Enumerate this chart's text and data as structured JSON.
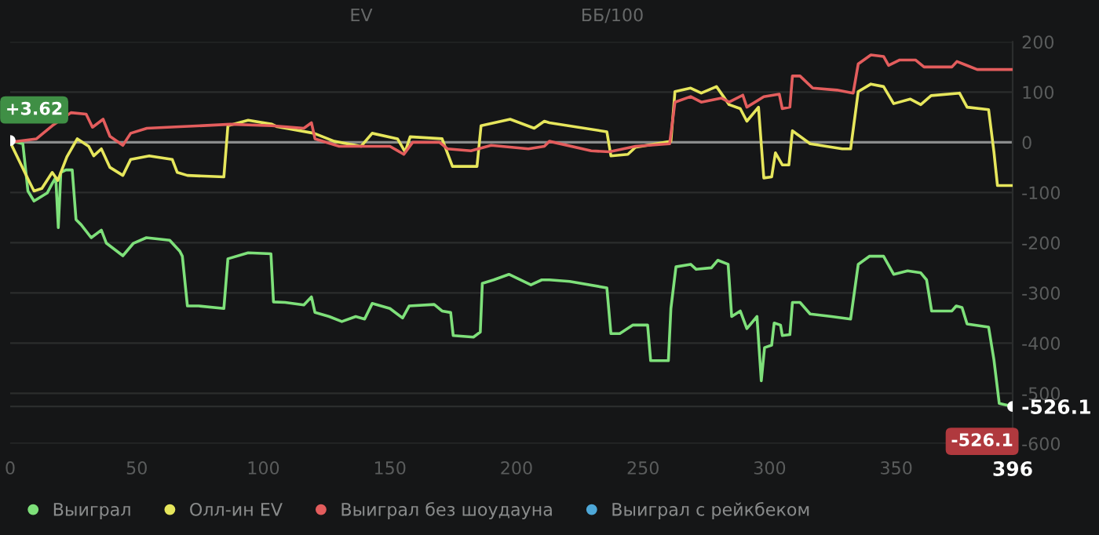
{
  "chart_data": {
    "type": "line",
    "annotations": [
      "EV",
      "ББ/100",
      {
        "text": "+3.62",
        "x": 0,
        "y": 3.62
      },
      {
        "text": "-526.1",
        "x": 396,
        "y": -526.1
      }
    ],
    "xlim": [
      0,
      396
    ],
    "xticks": [
      0,
      50,
      100,
      150,
      200,
      250,
      300,
      350,
      {
        "value": 396,
        "label": "396"
      }
    ],
    "ylim": [
      -600,
      200
    ],
    "yticks": [
      -600,
      -500,
      -400,
      -300,
      -200,
      -100,
      0,
      100,
      200,
      {
        "value": -526.1,
        "label": "-526.1"
      }
    ],
    "grid": "y",
    "legend": "bottom left",
    "marker": "none",
    "line_style": "solid",
    "ref_lines": [
      {
        "axis": "y",
        "value": 0,
        "color": "#8a8c8c"
      }
    ],
    "series": [
      {
        "name": "Выиграл",
        "color": "#7ee07a",
        "x": [
          0,
          5,
          7,
          9.4,
          14.6,
          16.6,
          18,
          19,
          20,
          22,
          24.5,
          26,
          28,
          32,
          36,
          38,
          44.5,
          48.7,
          53.8,
          63,
          67,
          68,
          70,
          74.5,
          84.4,
          86,
          94,
          103,
          104,
          108.6,
          116,
          119,
          120.4,
          126,
          131,
          136.5,
          140,
          143,
          150,
          155,
          157.6,
          167.5,
          170.6,
          174,
          175,
          183,
          185.7,
          186.5,
          191,
          197,
          205.7,
          210,
          213,
          221,
          235.7,
          237.3,
          240.8,
          246,
          251.8,
          253,
          260,
          261,
          263,
          268.8,
          271,
          277,
          279.5,
          283.6,
          285,
          288.4,
          291,
          295,
          296.7,
          298,
          300.8,
          301.8,
          304.3,
          305,
          308,
          309,
          312,
          316,
          324.5,
          332,
          335,
          339.4,
          345,
          349,
          354.5,
          359.7,
          362,
          364,
          372,
          373.7,
          376,
          378,
          386.5,
          388.6,
          390.7,
          396
        ],
        "values": [
          3.62,
          -3,
          -97,
          -117,
          -101,
          -82,
          -70,
          -170,
          -60,
          -55,
          -55,
          -154,
          -164,
          -190,
          -175,
          -201,
          -226,
          -201,
          -190,
          -195,
          -217,
          -227,
          -326,
          -326,
          -331,
          -232,
          -220,
          -222,
          -318,
          -319,
          -324,
          -308,
          -339,
          -347,
          -357,
          -347,
          -352,
          -321,
          -331,
          -350,
          -326,
          -323,
          -336,
          -339,
          -385,
          -388,
          -378,
          -281,
          -274,
          -263,
          -284,
          -274,
          -274,
          -277,
          -290,
          -381,
          -381,
          -364,
          -364,
          -435,
          -435,
          -331,
          -248,
          -243,
          -253,
          -250,
          -235,
          -243,
          -347,
          -336,
          -371,
          -347,
          -475,
          -409,
          -404,
          -360,
          -364,
          -385,
          -383,
          -319,
          -319,
          -342,
          -347,
          -352,
          -243,
          -227,
          -227,
          -263,
          -256,
          -260,
          -274,
          -336,
          -336,
          -326,
          -329,
          -362,
          -368,
          -433,
          -520,
          -526.1
        ]
      },
      {
        "name": "Олл-ин EV",
        "color": "#e6e65c",
        "x": [
          0,
          7.3,
          9.4,
          12.5,
          16.6,
          18.8,
          22.4,
          26.5,
          31,
          33,
          36,
          39.4,
          44.5,
          47.6,
          54.9,
          64,
          66,
          70,
          84.4,
          86,
          94,
          103.4,
          105.5,
          120,
          128,
          138.6,
          143,
          153,
          156,
          158,
          170.6,
          174.7,
          184.4,
          186,
          197.5,
          207,
          211,
          213,
          235.7,
          237.3,
          244,
          247,
          261,
          262.6,
          268.8,
          273,
          279,
          284,
          288.4,
          291,
          295.6,
          297.7,
          300.8,
          302.3,
          305,
          307.6,
          309,
          316,
          328.7,
          332,
          335,
          340,
          345,
          349,
          355.6,
          359.7,
          363.8,
          375,
          378,
          386.5,
          388.6,
          390,
          396
        ],
        "values": [
          0,
          -76,
          -97,
          -92,
          -60,
          -76,
          -29,
          7,
          -8,
          -27,
          -13,
          -50,
          -66,
          -34,
          -27,
          -34,
          -60,
          -66,
          -69,
          33,
          44,
          36,
          31,
          18,
          2,
          -8,
          18,
          7,
          -19,
          11,
          7,
          -48,
          -48,
          33,
          46,
          28,
          42,
          39,
          21,
          -27,
          -24,
          -10,
          2,
          101,
          108,
          98,
          111,
          75,
          67,
          42,
          70,
          -71,
          -69,
          -21,
          -45,
          -45,
          23,
          -3,
          -13,
          -13,
          101,
          116,
          111,
          77,
          86,
          75,
          93,
          98,
          70,
          65,
          -19,
          -86,
          -86
        ]
      },
      {
        "name": "Выиграл без шоудауна",
        "color": "#e35d5d",
        "x": [
          0,
          10.4,
          13,
          16.6,
          24,
          30,
          32.5,
          36.7,
          39.4,
          44.5,
          47.6,
          54,
          67,
          87,
          103.4,
          116,
          119,
          120.4,
          130,
          140.6,
          150,
          155.5,
          159,
          169.6,
          172.7,
          182,
          190,
          204.7,
          211,
          213,
          229.5,
          236.7,
          247,
          260.5,
          262.6,
          268.8,
          273,
          281,
          284,
          289.4,
          291,
          297.7,
          303.8,
          305,
          308,
          309,
          312,
          317,
          326.6,
          333,
          335,
          340,
          345,
          347,
          351.4,
          357.6,
          361,
          372,
          374,
          378,
          382,
          396
        ],
        "values": [
          0,
          7,
          18,
          33,
          59,
          56,
          30,
          46,
          12,
          -6,
          18,
          28,
          31,
          36,
          33,
          28,
          39,
          7,
          -8,
          -8,
          -8,
          -24,
          0,
          0,
          -13,
          -17,
          -6,
          -13,
          -8,
          2,
          -17,
          -19,
          -8,
          -3,
          80,
          91,
          80,
          88,
          80,
          94,
          70,
          91,
          96,
          67,
          70,
          132,
          132,
          108,
          104,
          98,
          156,
          174,
          171,
          153,
          164,
          164,
          150,
          150,
          161,
          153,
          145,
          145
        ]
      },
      {
        "name": "Выиграл с рейкбеком",
        "color": "#4ea8d8"
      }
    ]
  }
}
